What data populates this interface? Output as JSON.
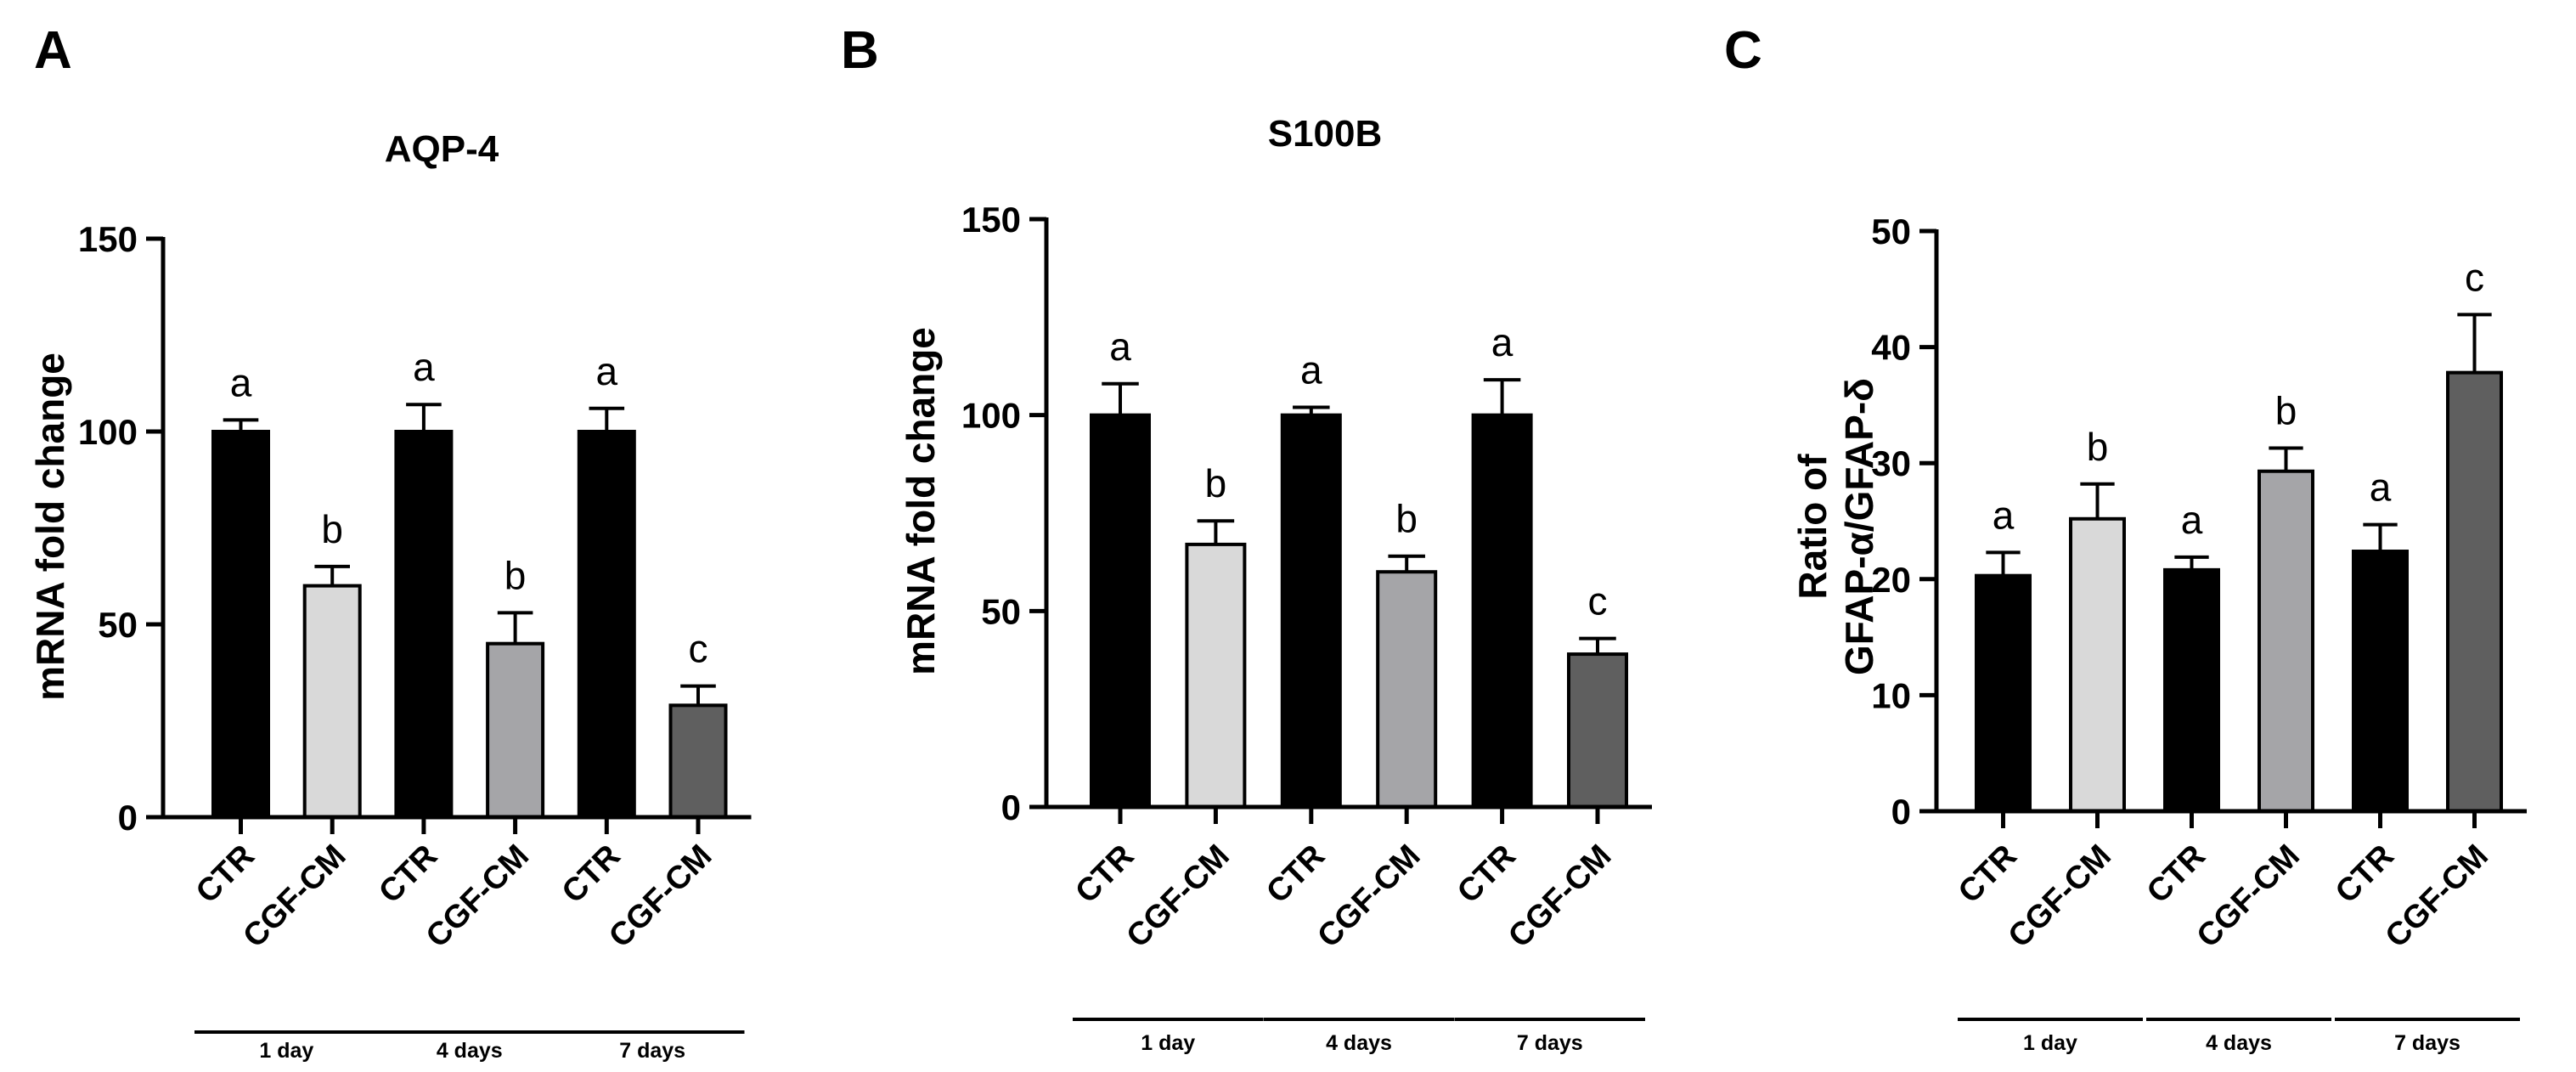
{
  "figure": {
    "panels": [
      "A",
      "B",
      "C"
    ]
  },
  "chart_data": [
    {
      "panel": "A",
      "type": "bar",
      "title": "AQP-4",
      "ylabel": "mRNA fold change",
      "xlabel": "",
      "ylim": [
        0,
        150
      ],
      "yticks": [
        "0",
        "50",
        "100",
        "150"
      ],
      "categories": [
        "CTR",
        "CGF-CM",
        "CTR",
        "CGF-CM",
        "CTR",
        "CGF-CM"
      ],
      "values": [
        100,
        60,
        100,
        45,
        100,
        29
      ],
      "errors": [
        3,
        5,
        7,
        8,
        6,
        5
      ],
      "significance": [
        "a",
        "b",
        "a",
        "b",
        "a",
        "c"
      ],
      "colors": [
        "#000000",
        "#d9d9d9",
        "#000000",
        "#a5a5a8",
        "#000000",
        "#5f5f5f"
      ],
      "groups": [
        {
          "label": "1 day",
          "bars": [
            0,
            1
          ]
        },
        {
          "label": "4 days",
          "bars": [
            2,
            3
          ]
        },
        {
          "label": "7 days",
          "bars": [
            4,
            5
          ]
        }
      ]
    },
    {
      "panel": "B",
      "type": "bar",
      "title": "S100B",
      "ylabel": "mRNA fold change",
      "xlabel": "",
      "ylim": [
        0,
        150
      ],
      "yticks": [
        "0",
        "50",
        "100",
        "150"
      ],
      "categories": [
        "CTR",
        "CGF-CM",
        "CTR",
        "CGF-CM",
        "CTR",
        "CGF-CM"
      ],
      "values": [
        100,
        67,
        100,
        60,
        100,
        39
      ],
      "errors": [
        8,
        6,
        2,
        4,
        9,
        4
      ],
      "significance": [
        "a",
        "b",
        "a",
        "b",
        "a",
        "c"
      ],
      "colors": [
        "#000000",
        "#d9d9d9",
        "#000000",
        "#a5a5a8",
        "#000000",
        "#5f5f5f"
      ],
      "groups": [
        {
          "label": "1 day",
          "bars": [
            0,
            1
          ]
        },
        {
          "label": "4 days",
          "bars": [
            2,
            3
          ]
        },
        {
          "label": "7 days",
          "bars": [
            4,
            5
          ]
        }
      ]
    },
    {
      "panel": "C",
      "type": "bar",
      "title": "",
      "ylabel": "Ratio of",
      "ylabel2": "GFAP-α/GFAP-δ",
      "xlabel": "",
      "ylim": [
        0,
        50
      ],
      "yticks": [
        "0",
        "10",
        "20",
        "30",
        "40",
        "50"
      ],
      "categories": [
        "CTR",
        "CGF-CM",
        "CTR",
        "CGF-CM",
        "CTR",
        "CGF-CM"
      ],
      "values": [
        20.3,
        25.2,
        20.8,
        29.3,
        22.4,
        37.8
      ],
      "errors": [
        2.0,
        3.0,
        1.1,
        2.0,
        2.3,
        5.0
      ],
      "significance": [
        "a",
        "b",
        "a",
        "b",
        "a",
        "c"
      ],
      "colors": [
        "#000000",
        "#d9d9d9",
        "#000000",
        "#a5a5a8",
        "#000000",
        "#5f5f5f"
      ],
      "groups": [
        {
          "label": "1 day",
          "bars": [
            0,
            1
          ]
        },
        {
          "label": "4 days",
          "bars": [
            2,
            3
          ]
        },
        {
          "label": "7 days",
          "bars": [
            4,
            5
          ]
        }
      ]
    }
  ]
}
